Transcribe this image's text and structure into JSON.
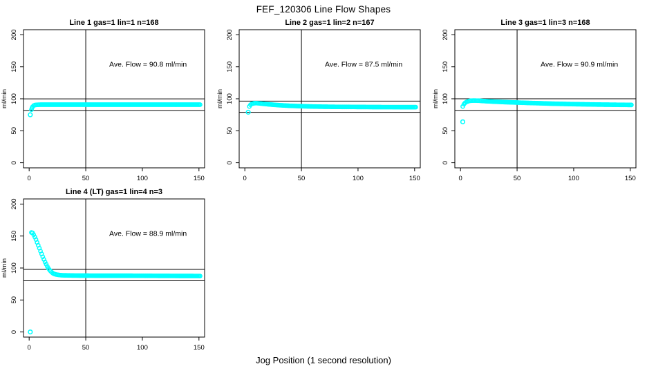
{
  "page": {
    "title": "FEF_120306  Line Flow Shapes",
    "bottom_axis_label": "Jog Position (1 second resolution)",
    "background_color": "#ffffff",
    "marker_color": "#00FFFF",
    "axis_color": "#000000"
  },
  "chart_data": [
    {
      "type": "scatter",
      "grid_position": {
        "row": 0,
        "col": 0
      },
      "title": "Line 1 gas=1 lin=1 n=168",
      "annotation": "Ave. Flow =  90.8  ml/min",
      "ave_flow_ml_min": 90.8,
      "n": 168,
      "ylabel": "ml/min",
      "xticks": [
        0,
        50,
        100,
        150
      ],
      "yticks": [
        0,
        50,
        100,
        150,
        200
      ],
      "xlim": [
        -5,
        155
      ],
      "ylim": [
        -8,
        208
      ],
      "vline_x": 50,
      "hlines": [
        99.9,
        81.7
      ],
      "isolated_points": [
        [
          1,
          75
        ]
      ],
      "curve": [
        [
          2,
          83
        ],
        [
          2.5,
          85.5
        ],
        [
          3,
          87.5
        ],
        [
          4,
          89.3
        ],
        [
          5,
          90.2
        ],
        [
          7,
          90.6
        ],
        [
          10,
          90.8
        ],
        [
          50,
          90.8
        ],
        [
          100,
          90.8
        ],
        [
          151,
          90.8
        ]
      ]
    },
    {
      "type": "scatter",
      "grid_position": {
        "row": 0,
        "col": 1
      },
      "title": "Line 2 gas=1 lin=2 n=167",
      "annotation": "Ave. Flow =  87.5  ml/min",
      "ave_flow_ml_min": 87.5,
      "n": 167,
      "ylabel": "ml/min",
      "xticks": [
        0,
        50,
        100,
        150
      ],
      "yticks": [
        0,
        50,
        100,
        150,
        200
      ],
      "xlim": [
        -5,
        155
      ],
      "ylim": [
        -8,
        208
      ],
      "vline_x": 50,
      "hlines": [
        96.3,
        78.8
      ],
      "isolated_points": [
        [
          3,
          79
        ]
      ],
      "curve": [
        [
          4,
          88
        ],
        [
          5,
          90.5
        ],
        [
          6,
          92
        ],
        [
          8,
          93
        ],
        [
          10,
          93.2
        ],
        [
          13,
          92.8
        ],
        [
          16,
          92.2
        ],
        [
          20,
          91.5
        ],
        [
          25,
          90.7
        ],
        [
          30,
          90
        ],
        [
          40,
          89
        ],
        [
          50,
          88.4
        ],
        [
          60,
          87.9
        ],
        [
          70,
          87.6
        ],
        [
          80,
          87.4
        ],
        [
          100,
          87.2
        ],
        [
          120,
          87
        ],
        [
          151,
          86.9
        ]
      ]
    },
    {
      "type": "scatter",
      "grid_position": {
        "row": 0,
        "col": 2
      },
      "title": "Line 3 gas=1 lin=3 n=168",
      "annotation": "Ave. Flow =  90.9  ml/min",
      "ave_flow_ml_min": 90.9,
      "n": 168,
      "ylabel": "ml/min",
      "xticks": [
        0,
        50,
        100,
        150
      ],
      "yticks": [
        0,
        50,
        100,
        150,
        200
      ],
      "xlim": [
        -5,
        155
      ],
      "ylim": [
        -8,
        208
      ],
      "vline_x": 50,
      "hlines": [
        100.0,
        81.8
      ],
      "isolated_points": [
        [
          2,
          64
        ]
      ],
      "curve": [
        [
          2,
          88
        ],
        [
          3,
          91.5
        ],
        [
          4,
          93.5
        ],
        [
          5,
          94.8
        ],
        [
          7,
          96.2
        ],
        [
          9,
          97
        ],
        [
          12,
          97.2
        ],
        [
          16,
          97
        ],
        [
          20,
          96.5
        ],
        [
          25,
          96
        ],
        [
          30,
          95.5
        ],
        [
          40,
          94.7
        ],
        [
          50,
          94.1
        ],
        [
          60,
          93.5
        ],
        [
          70,
          93
        ],
        [
          80,
          92.4
        ],
        [
          90,
          92
        ],
        [
          100,
          91.6
        ],
        [
          110,
          91.3
        ],
        [
          120,
          91
        ],
        [
          130,
          90.8
        ],
        [
          140,
          90.6
        ],
        [
          151,
          90.4
        ]
      ]
    },
    {
      "type": "scatter",
      "grid_position": {
        "row": 1,
        "col": 0
      },
      "title": "Line 4 (LT) gas=1 lin=4 n=3",
      "annotation": "Ave. Flow =  88.9  ml/min",
      "ave_flow_ml_min": 88.9,
      "n": 3,
      "ylabel": "ml/min",
      "xticks": [
        0,
        50,
        100,
        150
      ],
      "yticks": [
        0,
        50,
        100,
        150,
        200
      ],
      "xlim": [
        -5,
        155
      ],
      "ylim": [
        -8,
        208
      ],
      "vline_x": 50,
      "hlines": [
        97.8,
        80.0
      ],
      "isolated_points": [
        [
          1,
          0
        ]
      ],
      "curve": [
        [
          2,
          155.5
        ],
        [
          3,
          155
        ],
        [
          4,
          152
        ],
        [
          5,
          148.5
        ],
        [
          6,
          144.5
        ],
        [
          7,
          140
        ],
        [
          8,
          135.5
        ],
        [
          9,
          131
        ],
        [
          10,
          126.5
        ],
        [
          11,
          122
        ],
        [
          12,
          117.5
        ],
        [
          13,
          113.5
        ],
        [
          14,
          109.5
        ],
        [
          15,
          106
        ],
        [
          16,
          102.5
        ],
        [
          17,
          99.5
        ],
        [
          18,
          97
        ],
        [
          19,
          95
        ],
        [
          20,
          93.2
        ],
        [
          21,
          91.8
        ],
        [
          22,
          90.8
        ],
        [
          24,
          89.8
        ],
        [
          26,
          89.2
        ],
        [
          28,
          88.8
        ],
        [
          30,
          88.6
        ],
        [
          40,
          88.2
        ],
        [
          60,
          88
        ],
        [
          80,
          88
        ],
        [
          100,
          87.9
        ],
        [
          120,
          87.7
        ],
        [
          151,
          87.5
        ]
      ]
    }
  ]
}
